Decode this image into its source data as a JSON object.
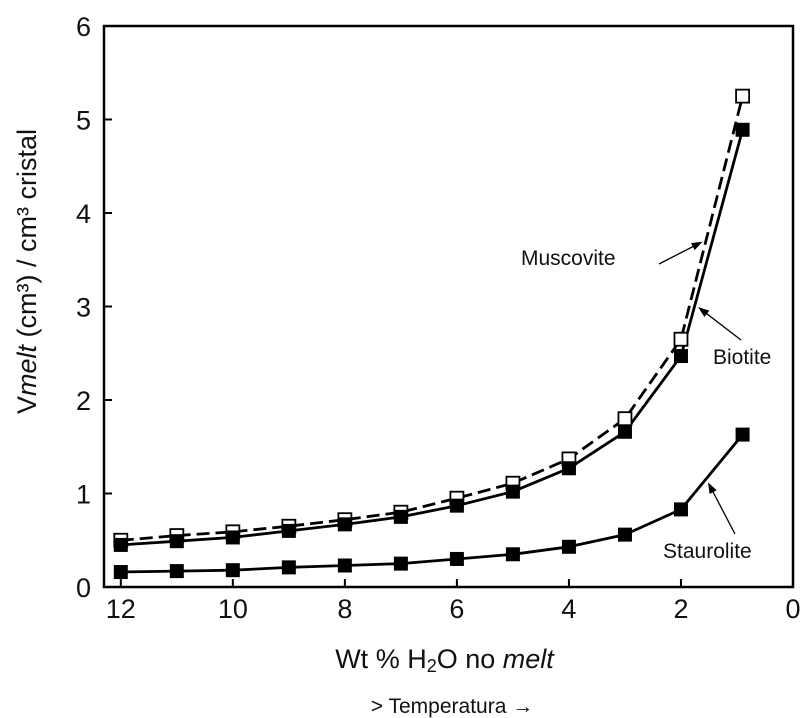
{
  "chart_data": {
    "type": "line",
    "xlabel_prefix": "Wt % H",
    "xlabel_sub": "2",
    "xlabel_mid": "O no ",
    "xlabel_italic": "melt",
    "ylabel_prefix": "V",
    "ylabel_italic": "melt",
    "ylabel_rest": " (cm³) / cm³ cristal",
    "footer": "> Temperatura  →",
    "xlim": [
      12.3,
      0
    ],
    "ylim": [
      0,
      6
    ],
    "xticks": [
      12,
      10,
      8,
      6,
      4,
      2,
      0
    ],
    "yticks": [
      0,
      1,
      2,
      3,
      4,
      5,
      6
    ],
    "grid": false,
    "series": [
      {
        "name": "Muscovite",
        "style": "dashed",
        "marker": "open-square",
        "x": [
          12,
          11,
          10,
          9,
          8,
          7,
          6,
          5,
          4,
          3,
          2,
          0.9
        ],
        "y": [
          0.5,
          0.55,
          0.59,
          0.65,
          0.72,
          0.8,
          0.95,
          1.11,
          1.37,
          1.8,
          2.65,
          5.25
        ]
      },
      {
        "name": "Biotite",
        "style": "solid",
        "marker": "filled-square",
        "x": [
          12,
          11,
          10,
          9,
          8,
          7,
          6,
          5,
          4,
          3,
          2,
          0.9
        ],
        "y": [
          0.45,
          0.49,
          0.53,
          0.6,
          0.67,
          0.75,
          0.87,
          1.02,
          1.27,
          1.66,
          2.47,
          4.89
        ]
      },
      {
        "name": "Staurolite",
        "style": "solid",
        "marker": "filled-square",
        "x": [
          12,
          11,
          10,
          9,
          8,
          7,
          6,
          5,
          4,
          3,
          2,
          0.9
        ],
        "y": [
          0.16,
          0.17,
          0.18,
          0.21,
          0.23,
          0.25,
          0.3,
          0.35,
          0.43,
          0.56,
          0.83,
          1.63
        ]
      }
    ],
    "annotations": [
      {
        "text": "Muscovite",
        "target_series": "Muscovite"
      },
      {
        "text": "Biotite",
        "target_series": "Biotite"
      },
      {
        "text": "Staurolite",
        "target_series": "Staurolite"
      }
    ]
  }
}
